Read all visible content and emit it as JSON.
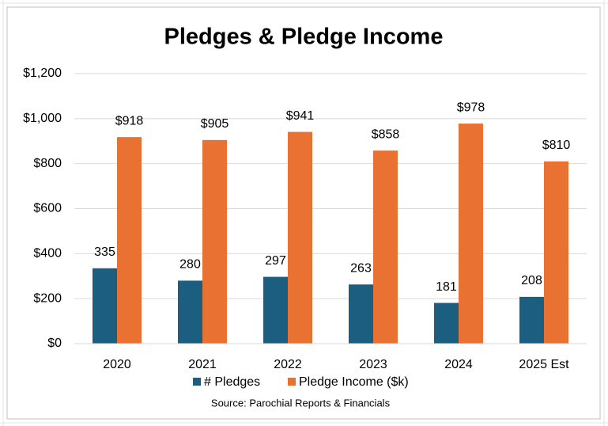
{
  "chart_data": {
    "type": "bar",
    "title": "Pledges & Pledge Income",
    "categories": [
      "2020",
      "2021",
      "2022",
      "2023",
      "2024",
      "2025 Est"
    ],
    "series": [
      {
        "name": "# Pledges",
        "color": "#1b5e80",
        "values": [
          335,
          280,
          297,
          263,
          181,
          208
        ]
      },
      {
        "name": "Pledge Income ($k)",
        "color": "#e97132",
        "values": [
          918,
          905,
          941,
          858,
          978,
          810
        ],
        "value_labels": [
          "$918",
          "$905",
          "$941",
          "$858",
          "$978",
          "$810"
        ]
      }
    ],
    "ylim": [
      0,
      1200
    ],
    "yticks": [
      {
        "value": 0,
        "label": "$0"
      },
      {
        "value": 200,
        "label": "$200"
      },
      {
        "value": 400,
        "label": "$400"
      },
      {
        "value": 600,
        "label": "$600"
      },
      {
        "value": 800,
        "label": "$800"
      },
      {
        "value": 1000,
        "label": "$1,000"
      },
      {
        "value": 1200,
        "label": "$1,200"
      }
    ],
    "grid": true,
    "annotation": "Source: Parochial Reports & Financials"
  }
}
